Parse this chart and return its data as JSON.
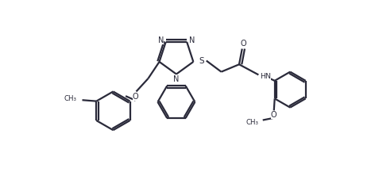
{
  "bg_color": "#ffffff",
  "line_color": "#2a2a3a",
  "line_width": 1.6,
  "figsize": [
    4.72,
    2.17
  ],
  "dpi": 100,
  "xlim": [
    0,
    10
  ],
  "ylim": [
    0,
    4.6
  ]
}
